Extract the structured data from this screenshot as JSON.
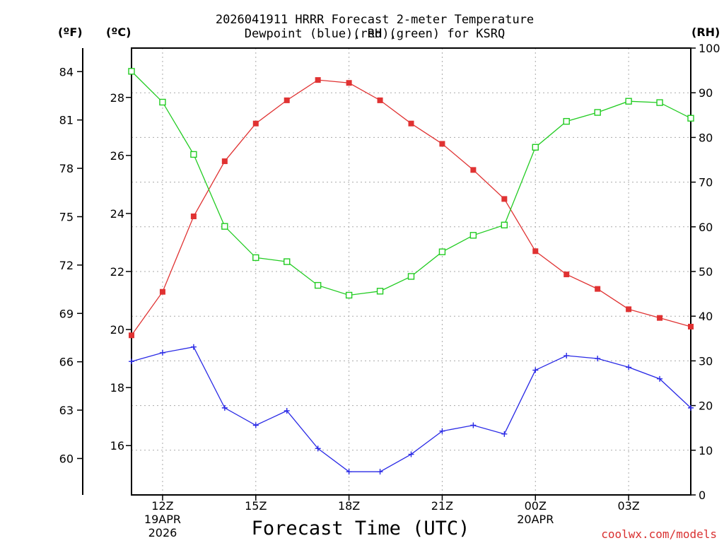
{
  "header": {
    "title_line1": "2026041911 HRRR Forecast 2-meter Temperature (red),",
    "title_line2": "Dewpoint (blue), RH (green) for KSRQ"
  },
  "units": {
    "fahrenheit": "(ºF)",
    "celsius": "(ºC)",
    "rh": "(RH)"
  },
  "footer": {
    "credit": "coolwx.com/models"
  },
  "chart_data": {
    "type": "line",
    "title": "2026041911 HRRR Forecast 2-meter Temperature (red), Dewpoint (blue), RH (green) for KSRQ",
    "xlabel": "Forecast Time (UTC)",
    "x_hours": [
      11,
      12,
      13,
      14,
      15,
      16,
      17,
      18,
      19,
      20,
      21,
      22,
      23,
      24,
      25,
      26,
      27,
      28,
      29
    ],
    "xlim": [
      11,
      29
    ],
    "x_ticks": [
      {
        "hour": 12,
        "lines": [
          "12Z",
          "19APR",
          "2026"
        ]
      },
      {
        "hour": 15,
        "lines": [
          "15Z"
        ]
      },
      {
        "hour": 18,
        "lines": [
          "18Z"
        ]
      },
      {
        "hour": 21,
        "lines": [
          "21Z"
        ]
      },
      {
        "hour": 24,
        "lines": [
          "00Z",
          "20APR"
        ]
      },
      {
        "hour": 27,
        "lines": [
          "03Z"
        ]
      }
    ],
    "y_left_c": {
      "label": "(ºC)",
      "lim": [
        14.3,
        29.7
      ],
      "ticks": [
        "16",
        "18",
        "20",
        "22",
        "24",
        "26",
        "28"
      ]
    },
    "y_left_f": {
      "label": "(ºF)",
      "ticks": [
        "60",
        "63",
        "66",
        "69",
        "72",
        "75",
        "78",
        "81",
        "84"
      ]
    },
    "y_right_rh": {
      "label": "(RH)",
      "lim": [
        0,
        100
      ],
      "ticks": [
        "0",
        "10",
        "20",
        "30",
        "40",
        "50",
        "60",
        "70",
        "80",
        "90",
        "100"
      ]
    },
    "series": [
      {
        "name": "2-meter Temperature",
        "axis": "celsius",
        "color": "#e03232",
        "marker": "filled-square",
        "values": [
          19.8,
          21.3,
          23.9,
          25.8,
          27.1,
          27.9,
          28.6,
          28.5,
          27.9,
          27.1,
          26.4,
          25.5,
          24.5,
          22.7,
          21.9,
          21.4,
          20.7,
          20.4,
          20.1
        ]
      },
      {
        "name": "Dewpoint",
        "axis": "celsius",
        "color": "#2a2ae6",
        "marker": "plus",
        "values": [
          18.9,
          19.2,
          19.4,
          17.3,
          16.7,
          17.2,
          15.9,
          15.1,
          15.1,
          15.7,
          16.5,
          16.7,
          16.4,
          18.6,
          19.1,
          19.0,
          18.7,
          18.3,
          17.3
        ]
      },
      {
        "name": "Relative Humidity",
        "axis": "rh",
        "color": "#22cc22",
        "marker": "open-square",
        "values": [
          94.8,
          87.9,
          76.2,
          60.1,
          53.1,
          52.2,
          46.9,
          44.7,
          45.6,
          48.9,
          54.4,
          58.1,
          60.4,
          77.8,
          83.6,
          85.6,
          88.1,
          87.8,
          84.3
        ]
      }
    ]
  }
}
